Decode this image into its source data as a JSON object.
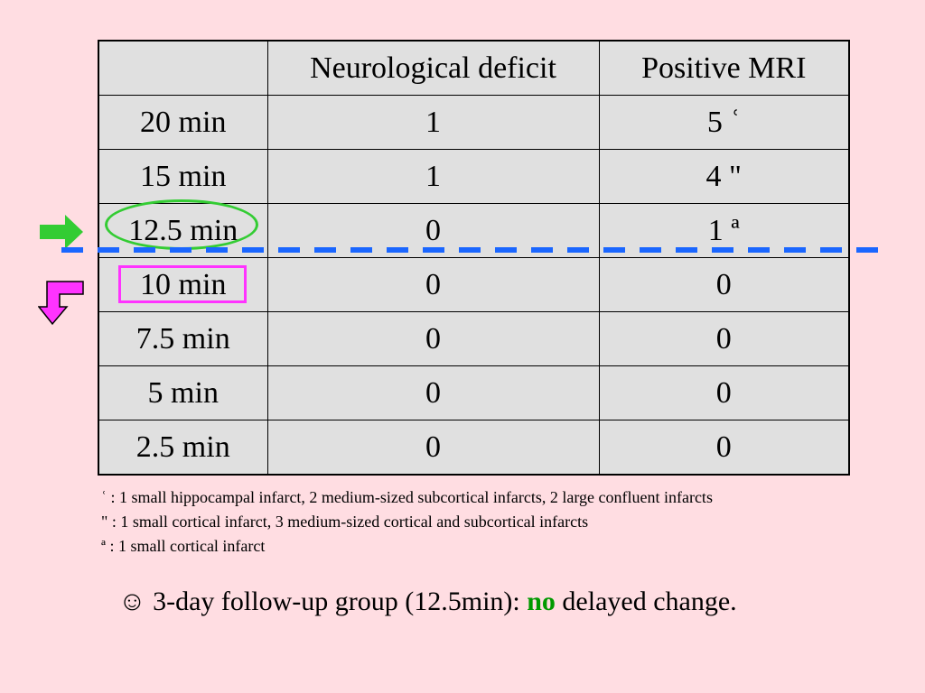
{
  "table": {
    "headers": [
      "",
      "Neurological deficit",
      "Positive MRI"
    ],
    "rows": [
      [
        "20 min",
        "1",
        "5 ʿ"
      ],
      [
        "15 min",
        "1",
        "4 \""
      ],
      [
        "12.5 min",
        "0",
        "1 ª"
      ],
      [
        "10 min",
        "0",
        "0"
      ],
      [
        "7.5 min",
        "0",
        "0"
      ],
      [
        "5 min",
        "0",
        "0"
      ],
      [
        "2.5 min",
        "0",
        "0"
      ]
    ]
  },
  "footnotes": [
    "ʿ : 1 small hippocampal infarct, 2 medium-sized subcortical infarcts, 2 large confluent infarcts",
    "\" : 1 small cortical infarct, 3 medium-sized cortical and subcortical infarcts",
    "ª : 1 small cortical infarct"
  ],
  "conclusion": {
    "prefix": "☺ 3-day follow-up group (12.5min): ",
    "highlight": "no",
    "suffix": " delayed change."
  },
  "colors": {
    "background": "#ffdde2",
    "table_fill": "#e0e0e0",
    "green": "#33cc33",
    "magenta": "#ff33ff",
    "blue_dash": "#1a66ff",
    "highlight_text": "#009900"
  },
  "icons": [
    "right-arrow-icon",
    "down-turn-arrow-icon"
  ]
}
